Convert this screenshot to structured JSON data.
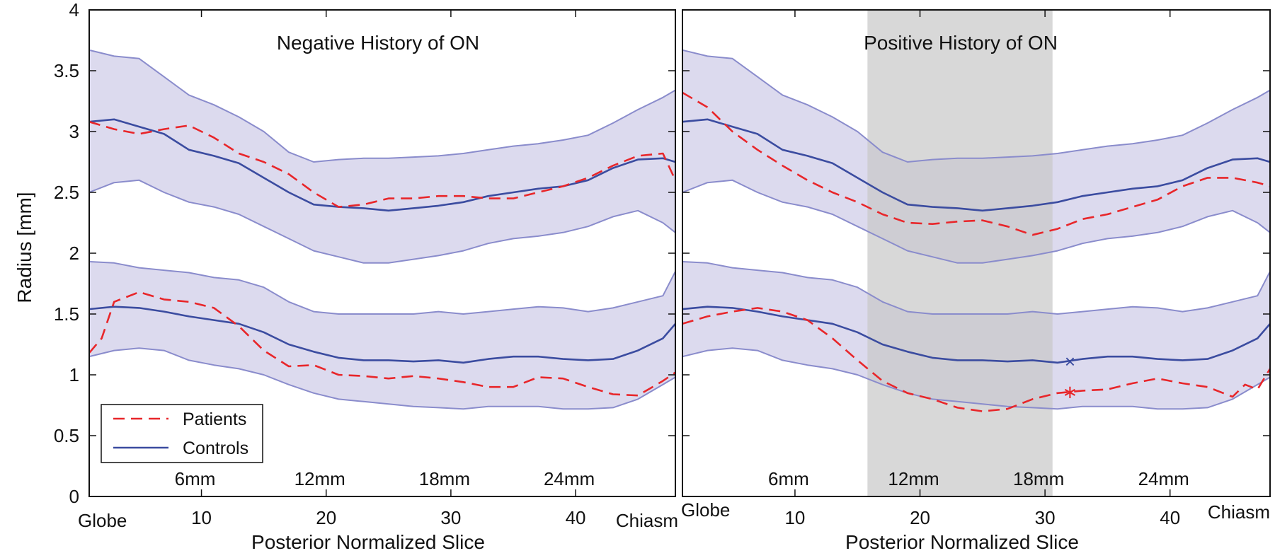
{
  "figure": {
    "ylabel": "Radius [mm]",
    "legend": {
      "placement": "bottom-left",
      "entries": [
        "Patients",
        "Controls"
      ]
    },
    "colors": {
      "patients": "#e8262a",
      "controls": "#3b4ca0",
      "band_fill": "#dcdaee",
      "band_edge": "#8a8ccc",
      "shade": "#c8c8c8"
    }
  },
  "chart_data": [
    {
      "type": "line",
      "title": "Negative History of ON",
      "xlabel": "Posterior Normalized Slice",
      "ylabel": "Radius [mm]",
      "xlim": [
        1,
        48
      ],
      "ylim": [
        0,
        4
      ],
      "xticks": [
        10,
        20,
        30,
        40
      ],
      "yticks": [
        0,
        0.5,
        1,
        1.5,
        2,
        2.5,
        3,
        3.5,
        4
      ],
      "ytick_labels": [
        "0",
        "0.5",
        "1",
        "1.5",
        "2",
        "2.5",
        "3",
        "3.5",
        "4"
      ],
      "end_labels": [
        "Globe",
        "Chiasm"
      ],
      "mm_annotations": [
        {
          "x": 10,
          "label": "6mm"
        },
        {
          "x": 20,
          "label": "12mm"
        },
        {
          "x": 30,
          "label": "18mm"
        },
        {
          "x": 40,
          "label": "24mm"
        }
      ],
      "grid": false,
      "series": [
        {
          "name": "Controls",
          "group": "outer",
          "role": "upper",
          "x": [
            1,
            3,
            5,
            7,
            9,
            11,
            13,
            15,
            17,
            19,
            21,
            23,
            25,
            27,
            29,
            31,
            33,
            35,
            37,
            39,
            41,
            43,
            45,
            47,
            48
          ],
          "y": [
            3.67,
            3.62,
            3.6,
            3.45,
            3.3,
            3.22,
            3.12,
            3.0,
            2.83,
            2.75,
            2.77,
            2.78,
            2.78,
            2.79,
            2.8,
            2.82,
            2.85,
            2.88,
            2.9,
            2.93,
            2.97,
            3.07,
            3.18,
            3.28,
            3.34
          ]
        },
        {
          "name": "Controls",
          "group": "outer",
          "role": "mean",
          "x": [
            1,
            3,
            5,
            7,
            9,
            11,
            13,
            15,
            17,
            19,
            21,
            23,
            25,
            27,
            29,
            31,
            33,
            35,
            37,
            39,
            41,
            43,
            45,
            47,
            48
          ],
          "y": [
            3.08,
            3.1,
            3.04,
            2.98,
            2.85,
            2.8,
            2.74,
            2.62,
            2.5,
            2.4,
            2.38,
            2.37,
            2.35,
            2.37,
            2.39,
            2.42,
            2.47,
            2.5,
            2.53,
            2.55,
            2.6,
            2.7,
            2.77,
            2.78,
            2.75
          ]
        },
        {
          "name": "Controls",
          "group": "outer",
          "role": "lower",
          "x": [
            1,
            3,
            5,
            7,
            9,
            11,
            13,
            15,
            17,
            19,
            21,
            23,
            25,
            27,
            29,
            31,
            33,
            35,
            37,
            39,
            41,
            43,
            45,
            47,
            48
          ],
          "y": [
            2.5,
            2.58,
            2.6,
            2.5,
            2.42,
            2.38,
            2.32,
            2.22,
            2.12,
            2.02,
            1.97,
            1.92,
            1.92,
            1.95,
            1.98,
            2.02,
            2.08,
            2.12,
            2.14,
            2.17,
            2.22,
            2.3,
            2.35,
            2.25,
            2.17
          ]
        },
        {
          "name": "Patients",
          "group": "outer",
          "role": "mean",
          "x": [
            1,
            3,
            5,
            7,
            9,
            11,
            13,
            15,
            17,
            19,
            21,
            23,
            25,
            27,
            29,
            31,
            33,
            35,
            37,
            39,
            41,
            43,
            45,
            47,
            48
          ],
          "y": [
            3.08,
            3.02,
            2.98,
            3.02,
            3.05,
            2.95,
            2.82,
            2.75,
            2.65,
            2.5,
            2.38,
            2.4,
            2.45,
            2.45,
            2.47,
            2.47,
            2.45,
            2.45,
            2.5,
            2.55,
            2.62,
            2.72,
            2.8,
            2.82,
            2.6
          ]
        },
        {
          "name": "Controls",
          "group": "inner",
          "role": "upper",
          "x": [
            1,
            3,
            5,
            7,
            9,
            11,
            13,
            15,
            17,
            19,
            21,
            23,
            25,
            27,
            29,
            31,
            33,
            35,
            37,
            39,
            41,
            43,
            45,
            47,
            48
          ],
          "y": [
            1.93,
            1.92,
            1.88,
            1.86,
            1.84,
            1.8,
            1.78,
            1.72,
            1.6,
            1.52,
            1.5,
            1.5,
            1.5,
            1.5,
            1.52,
            1.5,
            1.52,
            1.54,
            1.56,
            1.55,
            1.52,
            1.55,
            1.6,
            1.65,
            1.85
          ]
        },
        {
          "name": "Controls",
          "group": "inner",
          "role": "mean",
          "x": [
            1,
            3,
            5,
            7,
            9,
            11,
            13,
            15,
            17,
            19,
            21,
            23,
            25,
            27,
            29,
            31,
            33,
            35,
            37,
            39,
            41,
            43,
            45,
            47,
            48
          ],
          "y": [
            1.54,
            1.56,
            1.55,
            1.52,
            1.48,
            1.45,
            1.42,
            1.35,
            1.25,
            1.19,
            1.14,
            1.12,
            1.12,
            1.11,
            1.12,
            1.1,
            1.13,
            1.15,
            1.15,
            1.13,
            1.12,
            1.13,
            1.2,
            1.3,
            1.42
          ]
        },
        {
          "name": "Controls",
          "group": "inner",
          "role": "lower",
          "x": [
            1,
            3,
            5,
            7,
            9,
            11,
            13,
            15,
            17,
            19,
            21,
            23,
            25,
            27,
            29,
            31,
            33,
            35,
            37,
            39,
            41,
            43,
            45,
            47,
            48
          ],
          "y": [
            1.15,
            1.2,
            1.22,
            1.2,
            1.12,
            1.08,
            1.05,
            1.0,
            0.92,
            0.85,
            0.8,
            0.78,
            0.76,
            0.74,
            0.73,
            0.72,
            0.74,
            0.74,
            0.74,
            0.72,
            0.72,
            0.73,
            0.8,
            0.92,
            0.98
          ]
        },
        {
          "name": "Patients",
          "group": "inner",
          "role": "mean",
          "x": [
            1,
            2,
            3,
            5,
            7,
            9,
            11,
            13,
            15,
            17,
            19,
            21,
            23,
            25,
            27,
            29,
            31,
            33,
            35,
            37,
            39,
            41,
            43,
            45,
            47,
            48
          ],
          "y": [
            1.18,
            1.3,
            1.6,
            1.68,
            1.62,
            1.6,
            1.55,
            1.4,
            1.2,
            1.07,
            1.08,
            1.0,
            0.99,
            0.97,
            0.99,
            0.97,
            0.94,
            0.9,
            0.9,
            0.98,
            0.97,
            0.9,
            0.84,
            0.83,
            0.95,
            1.02
          ]
        }
      ]
    },
    {
      "type": "line",
      "title": "Positive History of ON",
      "xlabel": "Posterior Normalized Slice",
      "xlim": [
        1,
        48
      ],
      "ylim": [
        0,
        4
      ],
      "xticks": [
        10,
        20,
        30,
        40
      ],
      "yticks": [
        0,
        0.5,
        1,
        1.5,
        2,
        2.5,
        3,
        3.5,
        4
      ],
      "end_labels": [
        "Globe",
        "Chiasm"
      ],
      "mm_annotations": [
        {
          "x": 10,
          "label": "6mm"
        },
        {
          "x": 20,
          "label": "12mm"
        },
        {
          "x": 30,
          "label": "18mm"
        },
        {
          "x": 40,
          "label": "24mm"
        }
      ],
      "shaded_region": [
        15.8,
        30.6
      ],
      "markers": [
        {
          "series": "Controls",
          "x": 32,
          "y": 1.11,
          "symbol": "×"
        },
        {
          "series": "Patients",
          "x": 32,
          "y": 0.86,
          "symbol": "∗"
        }
      ],
      "grid": false,
      "series": [
        {
          "name": "Controls",
          "group": "outer",
          "role": "upper",
          "x": [
            1,
            3,
            5,
            7,
            9,
            11,
            13,
            15,
            17,
            19,
            21,
            23,
            25,
            27,
            29,
            31,
            33,
            35,
            37,
            39,
            41,
            43,
            45,
            47,
            48
          ],
          "y": [
            3.67,
            3.62,
            3.6,
            3.45,
            3.3,
            3.22,
            3.12,
            3.0,
            2.83,
            2.75,
            2.77,
            2.78,
            2.78,
            2.79,
            2.8,
            2.82,
            2.85,
            2.88,
            2.9,
            2.93,
            2.97,
            3.07,
            3.18,
            3.28,
            3.34
          ]
        },
        {
          "name": "Controls",
          "group": "outer",
          "role": "mean",
          "x": [
            1,
            3,
            5,
            7,
            9,
            11,
            13,
            15,
            17,
            19,
            21,
            23,
            25,
            27,
            29,
            31,
            33,
            35,
            37,
            39,
            41,
            43,
            45,
            47,
            48
          ],
          "y": [
            3.08,
            3.1,
            3.04,
            2.98,
            2.85,
            2.8,
            2.74,
            2.62,
            2.5,
            2.4,
            2.38,
            2.37,
            2.35,
            2.37,
            2.39,
            2.42,
            2.47,
            2.5,
            2.53,
            2.55,
            2.6,
            2.7,
            2.77,
            2.78,
            2.75
          ]
        },
        {
          "name": "Controls",
          "group": "outer",
          "role": "lower",
          "x": [
            1,
            3,
            5,
            7,
            9,
            11,
            13,
            15,
            17,
            19,
            21,
            23,
            25,
            27,
            29,
            31,
            33,
            35,
            37,
            39,
            41,
            43,
            45,
            47,
            48
          ],
          "y": [
            2.5,
            2.58,
            2.6,
            2.5,
            2.42,
            2.38,
            2.32,
            2.22,
            2.12,
            2.02,
            1.97,
            1.92,
            1.92,
            1.95,
            1.98,
            2.02,
            2.08,
            2.12,
            2.14,
            2.17,
            2.22,
            2.3,
            2.35,
            2.25,
            2.17
          ]
        },
        {
          "name": "Patients",
          "group": "outer",
          "role": "mean",
          "x": [
            1,
            3,
            5,
            7,
            9,
            11,
            13,
            15,
            17,
            19,
            21,
            23,
            25,
            27,
            29,
            31,
            33,
            35,
            37,
            39,
            41,
            43,
            45,
            47,
            48
          ],
          "y": [
            3.32,
            3.2,
            3.0,
            2.85,
            2.72,
            2.6,
            2.5,
            2.42,
            2.32,
            2.25,
            2.24,
            2.26,
            2.27,
            2.22,
            2.15,
            2.2,
            2.28,
            2.32,
            2.38,
            2.44,
            2.55,
            2.62,
            2.62,
            2.58,
            2.55
          ]
        },
        {
          "name": "Controls",
          "group": "inner",
          "role": "upper",
          "x": [
            1,
            3,
            5,
            7,
            9,
            11,
            13,
            15,
            17,
            19,
            21,
            23,
            25,
            27,
            29,
            31,
            33,
            35,
            37,
            39,
            41,
            43,
            45,
            47,
            48
          ],
          "y": [
            1.93,
            1.92,
            1.88,
            1.86,
            1.84,
            1.8,
            1.78,
            1.72,
            1.6,
            1.52,
            1.5,
            1.5,
            1.5,
            1.5,
            1.52,
            1.5,
            1.52,
            1.54,
            1.56,
            1.55,
            1.52,
            1.55,
            1.6,
            1.65,
            1.85
          ]
        },
        {
          "name": "Controls",
          "group": "inner",
          "role": "mean",
          "x": [
            1,
            3,
            5,
            7,
            9,
            11,
            13,
            15,
            17,
            19,
            21,
            23,
            25,
            27,
            29,
            31,
            33,
            35,
            37,
            39,
            41,
            43,
            45,
            47,
            48
          ],
          "y": [
            1.54,
            1.56,
            1.55,
            1.52,
            1.48,
            1.45,
            1.42,
            1.35,
            1.25,
            1.19,
            1.14,
            1.12,
            1.12,
            1.11,
            1.12,
            1.1,
            1.13,
            1.15,
            1.15,
            1.13,
            1.12,
            1.13,
            1.2,
            1.3,
            1.42
          ]
        },
        {
          "name": "Controls",
          "group": "inner",
          "role": "lower",
          "x": [
            1,
            3,
            5,
            7,
            9,
            11,
            13,
            15,
            17,
            19,
            21,
            23,
            25,
            27,
            29,
            31,
            33,
            35,
            37,
            39,
            41,
            43,
            45,
            47,
            48
          ],
          "y": [
            1.15,
            1.2,
            1.22,
            1.2,
            1.12,
            1.08,
            1.05,
            1.0,
            0.92,
            0.85,
            0.8,
            0.78,
            0.76,
            0.74,
            0.73,
            0.72,
            0.74,
            0.74,
            0.74,
            0.72,
            0.72,
            0.73,
            0.8,
            0.92,
            0.98
          ]
        },
        {
          "name": "Patients",
          "group": "inner",
          "role": "mean",
          "x": [
            1,
            2,
            3,
            5,
            7,
            9,
            11,
            13,
            15,
            17,
            19,
            21,
            23,
            25,
            27,
            29,
            31,
            33,
            35,
            37,
            39,
            41,
            43,
            45,
            46,
            47,
            48
          ],
          "y": [
            1.42,
            1.45,
            1.48,
            1.52,
            1.55,
            1.52,
            1.45,
            1.3,
            1.12,
            0.95,
            0.85,
            0.8,
            0.73,
            0.7,
            0.72,
            0.8,
            0.85,
            0.87,
            0.88,
            0.93,
            0.97,
            0.93,
            0.9,
            0.82,
            0.92,
            0.88,
            1.05
          ]
        }
      ]
    }
  ]
}
